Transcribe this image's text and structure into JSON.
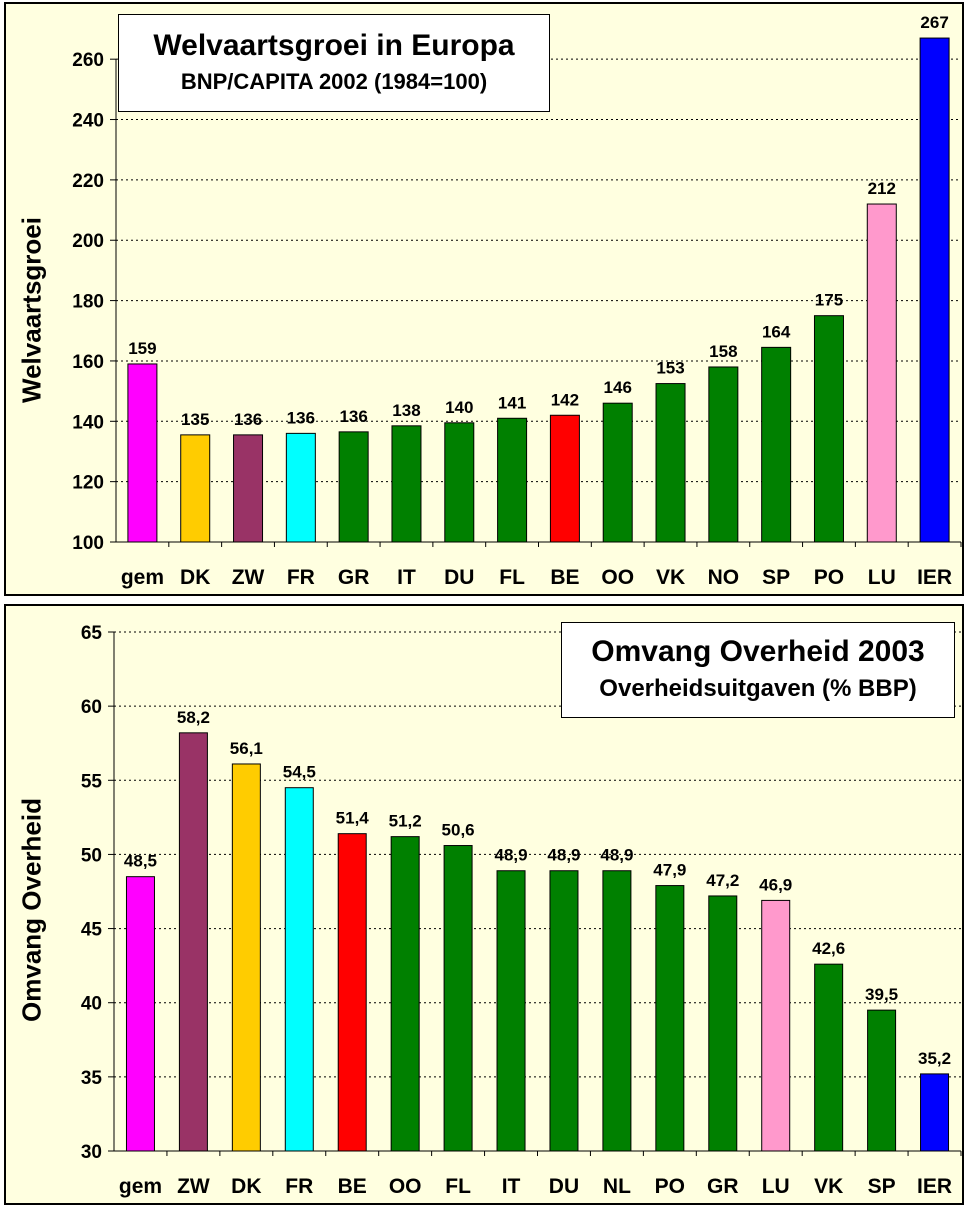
{
  "chart_data": [
    {
      "type": "bar",
      "title": "Welvaartsgroei in Europa",
      "subtitle": "BNP/CAPITA 2002 (1984=100)",
      "ylabel": "Welvaartsgroei",
      "xlabel": "",
      "ylim": [
        100,
        270
      ],
      "yticks": [
        100,
        120,
        140,
        160,
        180,
        200,
        220,
        240,
        260
      ],
      "grid": true,
      "categories": [
        "gem",
        "DK",
        "ZW",
        "FR",
        "GR",
        "IT",
        "DU",
        "FL",
        "BE",
        "OO",
        "VK",
        "NO",
        "SP",
        "PO",
        "LU",
        "IER"
      ],
      "values": [
        159,
        135.5,
        135.5,
        136,
        136.5,
        138.5,
        139.5,
        141,
        142,
        146,
        152.5,
        158,
        164.5,
        175,
        212,
        267
      ],
      "data_labels": [
        "159",
        "135",
        "136",
        "136",
        "136",
        "138",
        "140",
        "141",
        "142",
        "146",
        "153",
        "158",
        "164",
        "175",
        "212",
        "267"
      ],
      "colors": [
        "#ff00ff",
        "#ffcc00",
        "#993366",
        "#00ffff",
        "#008000",
        "#008000",
        "#008000",
        "#008000",
        "#ff0000",
        "#008000",
        "#008000",
        "#008000",
        "#008000",
        "#008000",
        "#ff99cc",
        "#0000ff"
      ]
    },
    {
      "type": "bar",
      "title": "Omvang Overheid 2003",
      "subtitle": "Overheidsuitgaven (% BBP)",
      "ylabel": "Omvang Overheid",
      "xlabel": "",
      "ylim": [
        30,
        65
      ],
      "yticks": [
        30,
        35,
        40,
        45,
        50,
        55,
        60,
        65
      ],
      "grid": true,
      "categories": [
        "gem",
        "ZW",
        "DK",
        "FR",
        "BE",
        "OO",
        "FL",
        "IT",
        "DU",
        "NL",
        "PO",
        "GR",
        "LU",
        "VK",
        "SP",
        "IER"
      ],
      "values": [
        48.5,
        58.2,
        56.1,
        54.5,
        51.4,
        51.2,
        50.6,
        48.9,
        48.9,
        48.9,
        47.9,
        47.2,
        46.9,
        42.6,
        39.5,
        35.2
      ],
      "data_labels": [
        "48,5",
        "58,2",
        "56,1",
        "54,5",
        "51,4",
        "51,2",
        "50,6",
        "48,9",
        "48,9",
        "48,9",
        "47,9",
        "47,2",
        "46,9",
        "42,6",
        "39,5",
        "35,2"
      ],
      "colors": [
        "#ff00ff",
        "#993366",
        "#ffcc00",
        "#00ffff",
        "#ff0000",
        "#008000",
        "#008000",
        "#008000",
        "#008000",
        "#008000",
        "#008000",
        "#008000",
        "#ff99cc",
        "#008000",
        "#008000",
        "#0000ff"
      ]
    }
  ]
}
